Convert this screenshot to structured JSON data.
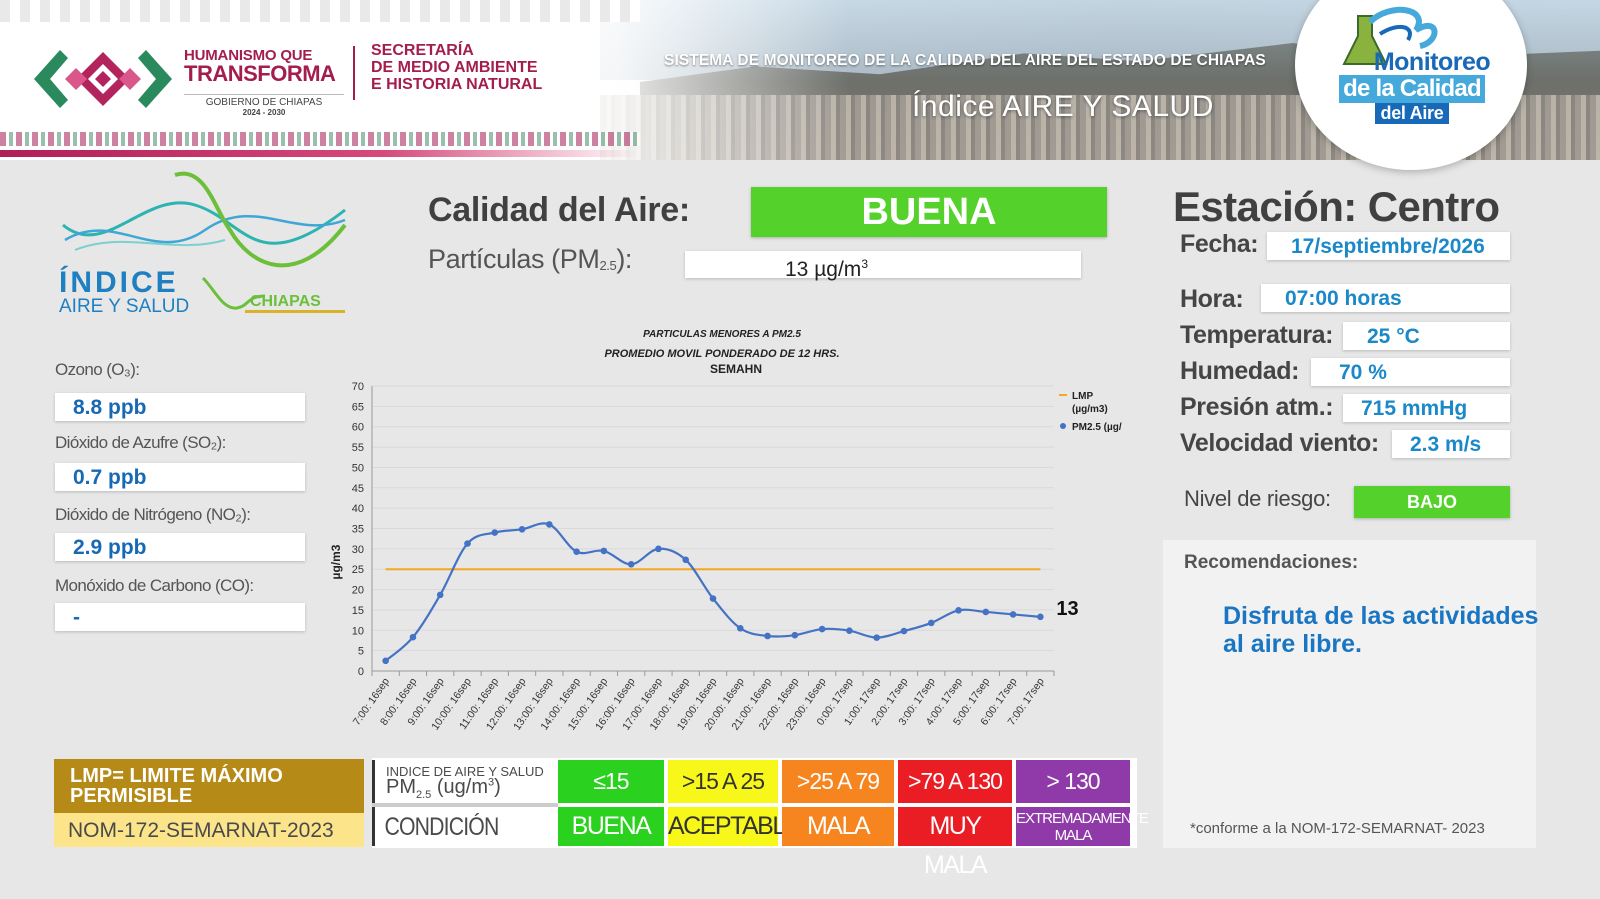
{
  "header": {
    "gov_line1": "HUMANISMO QUE",
    "gov_line2": "TRANSFORMA",
    "gov_line3": "GOBIERNO DE CHIAPAS",
    "gov_line4": "2024 - 2030",
    "sec_line1": "SECRETARÍA",
    "sec_line2": "DE MEDIO AMBIENTE",
    "sec_line3": "E HISTORIA NATURAL",
    "system_title": "SISTEMA DE MONITOREO DE LA CALIDAD DEL AIRE DEL ESTADO DE CHIAPAS",
    "index_title": "Índice AIRE Y SALUD",
    "monitor_1": "Monitoreo",
    "monitor_2": "de la Calidad",
    "monitor_3": "del Aire"
  },
  "index_logo": {
    "line1": "ÍNDICE",
    "line2": "AIRE Y SALUD",
    "line3": "CHIAPAS"
  },
  "pollutants": [
    {
      "label": "Ozono (O₃):",
      "value": "8.8 ppb"
    },
    {
      "label": "Dióxido de Azufre (SO₂):",
      "value": "0.7 ppb"
    },
    {
      "label": "Dióxido de Nitrógeno (NO₂):",
      "value": "2.9 ppb"
    },
    {
      "label": "Monóxido de Carbono (CO):",
      "value": "-"
    }
  ],
  "air_quality": {
    "label": "Calidad del Aire:",
    "value": "BUENA",
    "value_color": "#55d12b",
    "pm_label": "Partículas (PM",
    "pm_sub": "2.5",
    "pm_label_end": "):",
    "pm_value": "13 µg/m",
    "pm_value_sup": "3"
  },
  "station": {
    "title": "Estación: Centro",
    "fecha_label": "Fecha:",
    "fecha": "17/septiembre/2026",
    "hora_label": "Hora:",
    "hora": "07:00 horas",
    "temp_label": "Temperatura:",
    "temp": "25 °C",
    "hum_label": "Humedad:",
    "hum": "70 %",
    "pres_label": "Presión atm.:",
    "pres": "715 mmHg",
    "wind_label": "Velocidad viento:",
    "wind": "2.3 m/s",
    "risk_label": "Nivel de riesgo:",
    "risk": "BAJO",
    "reco_label": "Recomendaciones:",
    "reco_text": "Disfruta de las actividades al aire libre.",
    "note": "*conforme a la NOM-172-SEMARNAT- 2023"
  },
  "legend": {
    "lmp_text": "LMP= LIMITE MÁXIMO PERMISIBLE",
    "nom_text": "NOM-172-SEMARNAT-2023",
    "index_label_1": "INDICE DE AIRE Y SALUD",
    "index_label_2": "PM",
    "index_label_2_sub": "2.5",
    "index_label_2_end": " (ug/m",
    "index_label_2_sup": "3",
    "index_label_2_close": ")",
    "condition_label": "CONDICIÓN",
    "categories": [
      {
        "range": "≤15",
        "condition": "BUENA",
        "color": "#2ad11f",
        "text_color": "#ffffff"
      },
      {
        "range": ">15 A 25",
        "condition": "ACEPTABLE",
        "color": "#f7f71a",
        "text_color": "#333333"
      },
      {
        "range": ">25 A 79",
        "condition": "MALA",
        "color": "#f7851f",
        "text_color": "#ffffff"
      },
      {
        "range": ">79 A 130",
        "condition": "MUY MALA",
        "color": "#ea1c24",
        "text_color": "#ffffff"
      },
      {
        "range": "> 130",
        "condition": "EXTREMADAMENTE MALA",
        "color": "#8f3aa8",
        "text_color": "#ffffff"
      }
    ]
  },
  "chart_data": {
    "type": "line",
    "title_lines": [
      "PARTICULAS MENORES A PM2.5",
      "PROMEDIO MOVIL PONDERADO DE 12 HRS.",
      "SEMAHN"
    ],
    "ylabel": "µg/m3",
    "ylim": [
      0,
      70
    ],
    "yticks": [
      0,
      5,
      10,
      15,
      20,
      25,
      30,
      35,
      40,
      45,
      50,
      55,
      60,
      65,
      70
    ],
    "categories": [
      "7:00: 16sep",
      "8:00: 16sep",
      "9:00: 16sep",
      "10:00: 16sep",
      "11:00: 16sep",
      "12:00: 16sep",
      "13:00: 16sep",
      "14:00: 16sep",
      "15:00: 16sep",
      "16:00: 16sep",
      "17:00: 16sep",
      "18:00: 16sep",
      "19:00: 16sep",
      "20:00: 16sep",
      "21:00: 16sep",
      "22:00: 16sep",
      "23:00: 16sep",
      "0:00: 17sep",
      "1:00: 17sep",
      "2:00: 17sep",
      "3:00: 17sep",
      "4:00: 17sep",
      "5:00: 17sep",
      "6:00: 17sep",
      "7:00: 17sep"
    ],
    "series": [
      {
        "name": "PM2.5 (µg/",
        "kind": "line",
        "color": "#4472c4",
        "values": [
          2.5,
          8.3,
          18.7,
          31.3,
          34.0,
          34.8,
          36.0,
          29.3,
          29.5,
          26.2,
          30.0,
          27.3,
          17.8,
          10.5,
          8.6,
          8.8,
          10.3,
          9.9,
          8.2,
          9.8,
          11.8,
          14.9,
          14.5,
          13.9,
          13.3
        ]
      },
      {
        "name": "LMP\n(µg/m3)",
        "kind": "constant",
        "color": "#f5a623",
        "value": 25
      }
    ],
    "last_value_label": "13",
    "legend_position": "top-right",
    "grid": true
  }
}
